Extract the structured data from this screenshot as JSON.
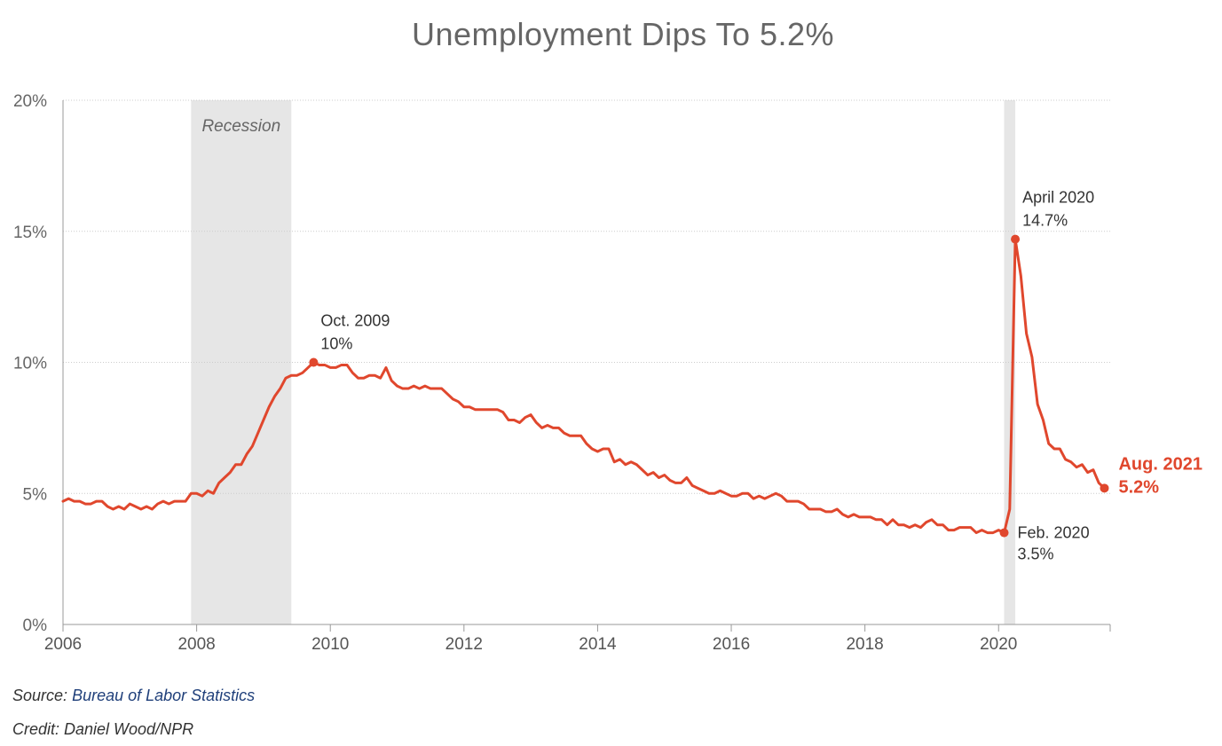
{
  "title": "Unemployment Dips To 5.2%",
  "source_label": "Source:",
  "source_name": "Bureau of Labor Statistics",
  "credit": "Credit: Daniel Wood/NPR",
  "colors": {
    "line": "#e0472d",
    "recession": "#e6e6e6",
    "grid": "#cccccc",
    "axis": "#999999"
  },
  "chart_data": {
    "type": "line",
    "title": "Unemployment Dips To 5.2%",
    "xlabel": "",
    "ylabel": "",
    "xlim": [
      2006,
      2021.67
    ],
    "ylim": [
      0,
      20
    ],
    "x_ticks": [
      2006,
      2008,
      2010,
      2012,
      2014,
      2016,
      2018,
      2020
    ],
    "x_tick_labels": [
      "2006",
      "2008",
      "2010",
      "2012",
      "2014",
      "2016",
      "2018",
      "2020"
    ],
    "y_ticks": [
      0,
      5,
      10,
      15,
      20
    ],
    "y_tick_labels": [
      "0%",
      "5%",
      "10%",
      "15%",
      "20%"
    ],
    "grid": true,
    "series": [
      {
        "start": "2006-01",
        "frequency": "monthly",
        "values": [
          4.7,
          4.8,
          4.7,
          4.7,
          4.6,
          4.6,
          4.7,
          4.7,
          4.5,
          4.4,
          4.5,
          4.4,
          4.6,
          4.5,
          4.4,
          4.5,
          4.4,
          4.6,
          4.7,
          4.6,
          4.7,
          4.7,
          4.7,
          5.0,
          5.0,
          4.9,
          5.1,
          5.0,
          5.4,
          5.6,
          5.8,
          6.1,
          6.1,
          6.5,
          6.8,
          7.3,
          7.8,
          8.3,
          8.7,
          9.0,
          9.4,
          9.5,
          9.5,
          9.6,
          9.8,
          10.0,
          9.9,
          9.9,
          9.8,
          9.8,
          9.9,
          9.9,
          9.6,
          9.4,
          9.4,
          9.5,
          9.5,
          9.4,
          9.8,
          9.3,
          9.1,
          9.0,
          9.0,
          9.1,
          9.0,
          9.1,
          9.0,
          9.0,
          9.0,
          8.8,
          8.6,
          8.5,
          8.3,
          8.3,
          8.2,
          8.2,
          8.2,
          8.2,
          8.2,
          8.1,
          7.8,
          7.8,
          7.7,
          7.9,
          8.0,
          7.7,
          7.5,
          7.6,
          7.5,
          7.5,
          7.3,
          7.2,
          7.2,
          7.2,
          6.9,
          6.7,
          6.6,
          6.7,
          6.7,
          6.2,
          6.3,
          6.1,
          6.2,
          6.1,
          5.9,
          5.7,
          5.8,
          5.6,
          5.7,
          5.5,
          5.4,
          5.4,
          5.6,
          5.3,
          5.2,
          5.1,
          5.0,
          5.0,
          5.1,
          5.0,
          4.9,
          4.9,
          5.0,
          5.0,
          4.8,
          4.9,
          4.8,
          4.9,
          5.0,
          4.9,
          4.7,
          4.7,
          4.7,
          4.6,
          4.4,
          4.4,
          4.4,
          4.3,
          4.3,
          4.4,
          4.2,
          4.1,
          4.2,
          4.1,
          4.1,
          4.1,
          4.0,
          4.0,
          3.8,
          4.0,
          3.8,
          3.8,
          3.7,
          3.8,
          3.7,
          3.9,
          4.0,
          3.8,
          3.8,
          3.6,
          3.6,
          3.7,
          3.7,
          3.7,
          3.5,
          3.6,
          3.5,
          3.5,
          3.6,
          3.5,
          4.4,
          14.7,
          13.3,
          11.1,
          10.2,
          8.4,
          7.8,
          6.9,
          6.7,
          6.7,
          6.3,
          6.2,
          6.0,
          6.1,
          5.8,
          5.9,
          5.4,
          5.2
        ]
      }
    ],
    "recessions": [
      {
        "start": "2007-12",
        "end": "2009-06",
        "label": "Recession"
      },
      {
        "start": "2020-02",
        "end": "2020-04",
        "label": ""
      }
    ],
    "annotations": [
      {
        "date": "2009-10",
        "value": 10.0,
        "line1": "Oct. 2009",
        "line2": "10%",
        "style": "normal",
        "position": "above-right"
      },
      {
        "date": "2020-04",
        "value": 14.7,
        "line1": "April 2020",
        "line2": "14.7%",
        "style": "normal",
        "position": "above-right"
      },
      {
        "date": "2020-02",
        "value": 3.5,
        "line1": "Feb. 2020",
        "line2": "3.5%",
        "style": "normal",
        "position": "below-right"
      },
      {
        "date": "2021-08",
        "value": 5.2,
        "line1": "Aug. 2021",
        "line2": "5.2%",
        "style": "highlight",
        "position": "right"
      }
    ]
  }
}
